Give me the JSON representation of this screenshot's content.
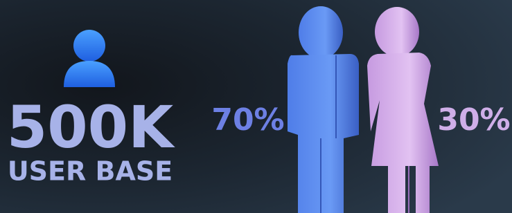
{
  "stat": {
    "value": "500K",
    "label": "USER BASE"
  },
  "gender_split": [
    {
      "percent": "70%"
    },
    {
      "percent": "30%"
    }
  ]
}
